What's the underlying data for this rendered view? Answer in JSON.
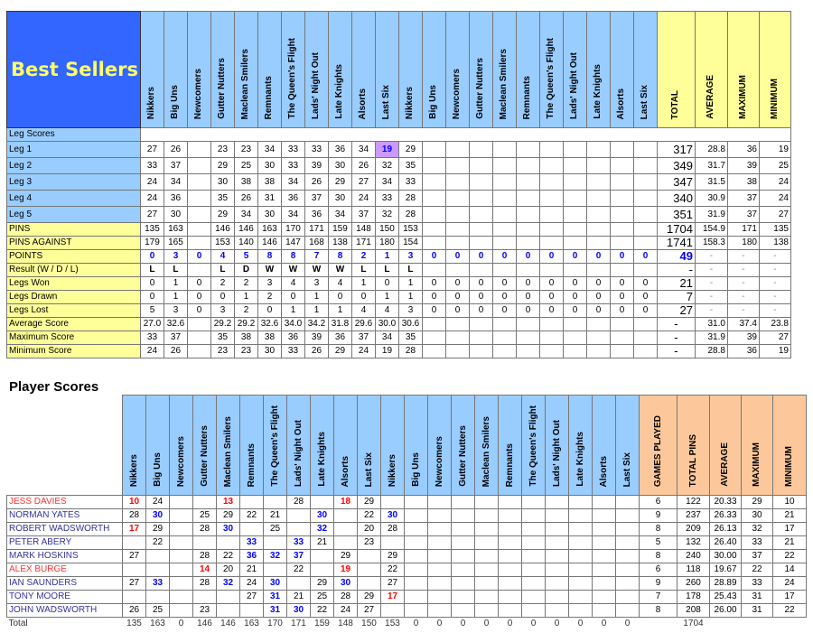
{
  "teams": [
    "Nikkers",
    "Big Uns",
    "Newcomers",
    "Gutter Nutters",
    "Maclean Smilers",
    "Remnants",
    "The Queen's Flight",
    "Lads' Night Out",
    "Late Knights",
    "Alsorts",
    "Last Six",
    "Nikkers",
    "Big Uns",
    "Newcomers",
    "Gutter Nutters",
    "Maclean Smilers",
    "Remnants",
    "The Queen's Flight",
    "Lads' Night Out",
    "Late Knights",
    "Alsorts",
    "Last Six"
  ],
  "colors": {
    "header_blue": "#99ccff",
    "title_bg": "#3366ff",
    "title_text": "#ffff66",
    "stats_yellow": "#ffff99",
    "summary_orange": "#fcc89b",
    "highlight_red": "#ff0000",
    "highlight_blue": "#0000ff",
    "highlight_purple": "#cc99ff"
  },
  "top": {
    "title": "Best Sellers",
    "summary_headers": [
      "TOTAL",
      "AVERAGE",
      "MAXIMUM",
      "MINIMUM"
    ],
    "section_label": "Leg Scores",
    "rows": [
      {
        "label": "Leg 1",
        "kind": "leg",
        "cells": [
          "27",
          "26",
          "",
          "23",
          "23",
          "34",
          "33",
          "33",
          "36",
          "34",
          {
            "v": "19",
            "c": "purple"
          },
          "29"
        ],
        "summary": [
          "317",
          "28.8",
          "36",
          "19"
        ]
      },
      {
        "label": "Leg 2",
        "kind": "leg",
        "cells": [
          "33",
          "37",
          "",
          "29",
          "25",
          "30",
          "33",
          "39",
          "30",
          "26",
          "32",
          "35"
        ],
        "summary": [
          "349",
          "31.7",
          "39",
          "25"
        ]
      },
      {
        "label": "Leg 3",
        "kind": "leg",
        "cells": [
          "24",
          "34",
          "",
          "30",
          "38",
          "38",
          "34",
          "26",
          "29",
          "27",
          "34",
          "33"
        ],
        "summary": [
          "347",
          "31.5",
          "38",
          "24"
        ]
      },
      {
        "label": "Leg 4",
        "kind": "leg",
        "cells": [
          "24",
          "36",
          "",
          "35",
          "26",
          "31",
          "36",
          "37",
          "30",
          "24",
          "33",
          "28"
        ],
        "summary": [
          "340",
          "30.9",
          "37",
          "24"
        ]
      },
      {
        "label": "Leg 5",
        "kind": "leg",
        "cells": [
          "27",
          "30",
          "",
          "29",
          "34",
          "30",
          "34",
          "36",
          "34",
          "37",
          "32",
          "28"
        ],
        "summary": [
          "351",
          "31.9",
          "37",
          "27"
        ]
      },
      {
        "label": "PINS",
        "kind": "stat",
        "cells": [
          "135",
          "163",
          "",
          "146",
          "146",
          "163",
          "170",
          "171",
          "159",
          "148",
          "150",
          "153"
        ],
        "summary": [
          "1704",
          "154.9",
          "171",
          "135"
        ]
      },
      {
        "label": "PINS AGAINST",
        "kind": "stat",
        "cells": [
          "179",
          "165",
          "",
          "153",
          "140",
          "146",
          "147",
          "168",
          "138",
          "171",
          "180",
          "154"
        ],
        "summary": [
          "1741",
          "158.3",
          "180",
          "138"
        ]
      },
      {
        "label": "POINTS",
        "kind": "points",
        "cells": [
          "0",
          "3",
          "0",
          "4",
          "5",
          "8",
          "8",
          "7",
          "8",
          "2",
          "1",
          "3",
          "0",
          "0",
          "0",
          "0",
          "0",
          "0",
          "0",
          "0",
          "0",
          "0"
        ],
        "summary": [
          "49",
          "-",
          "-",
          "-"
        ]
      },
      {
        "label": "Result (W / D / L)",
        "kind": "result",
        "cells": [
          "L",
          "L",
          "",
          "L",
          "D",
          "W",
          "W",
          "W",
          "W",
          "L",
          "L",
          "L"
        ],
        "summary": [
          "-",
          "-",
          "-",
          "-"
        ]
      },
      {
        "label": "Legs Won",
        "kind": "stat",
        "cells": [
          "0",
          "1",
          "0",
          "2",
          "2",
          "3",
          "4",
          "3",
          "4",
          "1",
          "0",
          "1",
          "0",
          "0",
          "0",
          "0",
          "0",
          "0",
          "0",
          "0",
          "0",
          "0"
        ],
        "summary": [
          "21",
          "-",
          "-",
          "-"
        ]
      },
      {
        "label": "Legs Drawn",
        "kind": "stat",
        "cells": [
          "0",
          "1",
          "0",
          "0",
          "1",
          "2",
          "0",
          "1",
          "0",
          "0",
          "1",
          "1",
          "0",
          "0",
          "0",
          "0",
          "0",
          "0",
          "0",
          "0",
          "0",
          "0"
        ],
        "summary": [
          "7",
          "-",
          "-",
          "-"
        ]
      },
      {
        "label": "Legs Lost",
        "kind": "stat",
        "cells": [
          "5",
          "3",
          "0",
          "3",
          "2",
          "0",
          "1",
          "1",
          "1",
          "4",
          "4",
          "3",
          "0",
          "0",
          "0",
          "0",
          "0",
          "0",
          "0",
          "0",
          "0",
          "0"
        ],
        "summary": [
          "27",
          "-",
          "-",
          "-"
        ]
      },
      {
        "label": "Average Score",
        "kind": "stat",
        "cells": [
          "27.0",
          "32.6",
          "",
          "29.2",
          "29.2",
          "32.6",
          "34.0",
          "34.2",
          "31.8",
          "29.6",
          "30.0",
          "30.6"
        ],
        "summary": [
          "-",
          "31.0",
          "37.4",
          "23.8"
        ]
      },
      {
        "label": "Maximum Score",
        "kind": "stat",
        "cells": [
          "33",
          "37",
          "",
          "35",
          "38",
          "38",
          "36",
          "39",
          "36",
          "37",
          "34",
          "35"
        ],
        "summary": [
          "-",
          "31.9",
          "39",
          "27"
        ]
      },
      {
        "label": "Minimum Score",
        "kind": "stat",
        "cells": [
          "24",
          "26",
          "",
          "23",
          "23",
          "30",
          "33",
          "26",
          "29",
          "24",
          "19",
          "28"
        ],
        "summary": [
          "-",
          "28.8",
          "36",
          "19"
        ]
      }
    ]
  },
  "players": {
    "title": "Player Scores",
    "summary_headers": [
      "GAMES PLAYED",
      "TOTAL PINS",
      "AVERAGE",
      "MAXIMUM",
      "MINIMUM"
    ],
    "rows": [
      {
        "name": "JESS DAVIES",
        "color": "red",
        "cells": [
          {
            "v": "10",
            "c": "red"
          },
          "24",
          "",
          "",
          {
            "v": "13",
            "c": "red"
          },
          "",
          "",
          "28",
          "",
          {
            "v": "18",
            "c": "red"
          },
          "29",
          ""
        ],
        "summary": [
          "6",
          "122",
          "20.33",
          "29",
          "10"
        ]
      },
      {
        "name": "NORMAN YATES",
        "color": "blue",
        "cells": [
          "28",
          {
            "v": "30",
            "c": "blue"
          },
          "",
          "25",
          "29",
          "22",
          "21",
          "",
          {
            "v": "30",
            "c": "blue"
          },
          "",
          "22",
          {
            "v": "30",
            "c": "blue"
          }
        ],
        "summary": [
          "9",
          "237",
          "26.33",
          "30",
          "21"
        ]
      },
      {
        "name": "ROBERT WADSWORTH",
        "color": "blue",
        "cells": [
          {
            "v": "17",
            "c": "red"
          },
          "29",
          "",
          "28",
          {
            "v": "30",
            "c": "blue"
          },
          "",
          "25",
          "",
          {
            "v": "32",
            "c": "blue"
          },
          "",
          "20",
          "28"
        ],
        "summary": [
          "8",
          "209",
          "26.13",
          "32",
          "17"
        ]
      },
      {
        "name": "PETER ABERY",
        "color": "blue",
        "cells": [
          "",
          "22",
          "",
          "",
          "",
          {
            "v": "33",
            "c": "blue"
          },
          "",
          {
            "v": "33",
            "c": "blue"
          },
          "21",
          "",
          "23",
          ""
        ],
        "summary": [
          "5",
          "132",
          "26.40",
          "33",
          "21"
        ]
      },
      {
        "name": "MARK HOSKINS",
        "color": "blue",
        "cells": [
          "27",
          "",
          "",
          "28",
          "22",
          {
            "v": "36",
            "c": "blue"
          },
          {
            "v": "32",
            "c": "blue"
          },
          {
            "v": "37",
            "c": "blue"
          },
          "",
          "29",
          "",
          "29"
        ],
        "summary": [
          "8",
          "240",
          "30.00",
          "37",
          "22"
        ]
      },
      {
        "name": "ALEX BURGE",
        "color": "red",
        "cells": [
          "",
          "",
          "",
          {
            "v": "14",
            "c": "red"
          },
          "20",
          "21",
          "",
          "22",
          "",
          {
            "v": "19",
            "c": "red"
          },
          "",
          "22"
        ],
        "summary": [
          "6",
          "118",
          "19.67",
          "22",
          "14"
        ]
      },
      {
        "name": "IAN SAUNDERS",
        "color": "blue",
        "cells": [
          "27",
          {
            "v": "33",
            "c": "blue"
          },
          "",
          "28",
          {
            "v": "32",
            "c": "blue"
          },
          "24",
          {
            "v": "30",
            "c": "blue"
          },
          "",
          "29",
          {
            "v": "30",
            "c": "blue"
          },
          "",
          "27"
        ],
        "summary": [
          "9",
          "260",
          "28.89",
          "33",
          "24"
        ]
      },
      {
        "name": "TONY MOORE",
        "color": "blue",
        "cells": [
          "",
          "",
          "",
          "",
          "",
          "27",
          {
            "v": "31",
            "c": "blue"
          },
          "21",
          "25",
          "28",
          "29",
          {
            "v": "17",
            "c": "red"
          }
        ],
        "summary": [
          "7",
          "178",
          "25.43",
          "31",
          "17"
        ]
      },
      {
        "name": "JOHN WADSWORTH",
        "color": "blue",
        "cells": [
          "26",
          "25",
          "",
          "23",
          "",
          "",
          {
            "v": "31",
            "c": "blue"
          },
          {
            "v": "30",
            "c": "blue"
          },
          "22",
          "24",
          "27",
          ""
        ],
        "summary": [
          "8",
          "208",
          "26.00",
          "31",
          "22"
        ]
      }
    ],
    "total": {
      "label": "Total",
      "cells": [
        "135",
        "163",
        "0",
        "146",
        "146",
        "163",
        "170",
        "171",
        "159",
        "148",
        "150",
        "153",
        "0",
        "0",
        "0",
        "0",
        "0",
        "0",
        "0",
        "0",
        "0",
        "0"
      ],
      "summary": [
        "",
        "1704",
        "",
        "",
        ""
      ]
    }
  }
}
